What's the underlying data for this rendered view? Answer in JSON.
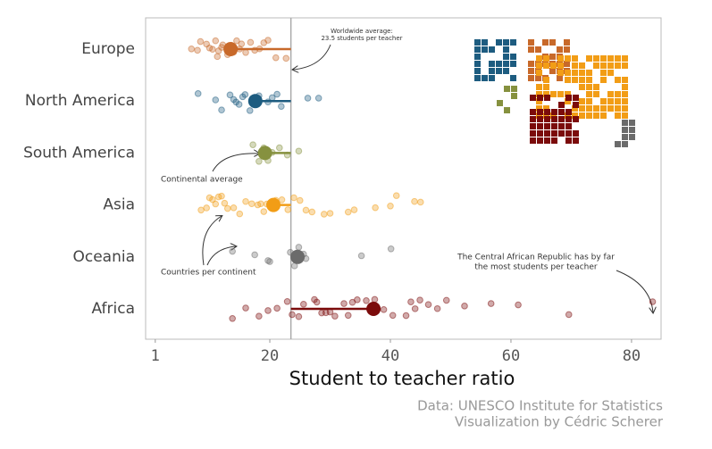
{
  "chart_data": {
    "type": "strip",
    "x_label": "Student to teacher ratio",
    "xlim": [
      -0.6,
      84.9
    ],
    "xticks": [
      1,
      20,
      40,
      60,
      80
    ],
    "average": 23.5,
    "annotations": {
      "worldwide": [
        "Worldwide average:",
        "23.5 students per teacher"
      ],
      "continental": "Continental average",
      "countries": "Countries per continent",
      "car": [
        "The Central African Republic has by far",
        "the most students per teacher"
      ]
    },
    "caption": [
      "Data: UNESCO Institute for Statistics",
      "Visualization by Cédric Scherer"
    ],
    "series": [
      {
        "name": "Europe",
        "color": "#c8692a",
        "mean": 13.5,
        "values": [
          7,
          8,
          8.5,
          9.5,
          10,
          10.5,
          11,
          11.3,
          11.5,
          12,
          12.2,
          13,
          14,
          14.5,
          15,
          15.3,
          16,
          16.8,
          17.5,
          18.3,
          19,
          19.7,
          21,
          22.7
        ]
      },
      {
        "name": "North America",
        "color": "#1d5c80",
        "mean": 17.6,
        "values": [
          8.1,
          11,
          12,
          13.4,
          14,
          14.4,
          14.9,
          15.5,
          15.9,
          16.7,
          17.2,
          18.2,
          19.7,
          20.4,
          21.2,
          21.9,
          26.3,
          28.1
        ]
      },
      {
        "name": "South America",
        "color": "#86913f",
        "mean": 19.2,
        "values": [
          17.2,
          18.2,
          19,
          19.7,
          20.4,
          21.6,
          22.9,
          24.8
        ]
      },
      {
        "name": "Asia",
        "color": "#f29d16",
        "mean": 20.6,
        "values": [
          8.6,
          9.5,
          10,
          10.5,
          11,
          11.5,
          12,
          12.5,
          13,
          14,
          15,
          16,
          17,
          18,
          18.5,
          19,
          19.5,
          20,
          21,
          22,
          23,
          24,
          25,
          26,
          27,
          29,
          30,
          33,
          34,
          37.5,
          40,
          41,
          44,
          45
        ]
      },
      {
        "name": "Oceania",
        "color": "#6b6b6b",
        "mean": 24.6,
        "values": [
          13.8,
          17.5,
          19.7,
          20,
          23.4,
          24.1,
          24.8,
          25.6,
          26,
          35.2,
          40.1
        ]
      },
      {
        "name": "Africa",
        "color": "#7b0b0b",
        "mean": 37.2,
        "values": [
          13.8,
          16,
          18.2,
          19.7,
          21.2,
          22.9,
          23.7,
          24.8,
          25.6,
          27.4,
          27.8,
          28.6,
          29.3,
          30,
          30.8,
          32.3,
          33,
          33.7,
          34.5,
          36,
          37.4,
          38.9,
          40.4,
          42.6,
          43.4,
          44.1,
          44.9,
          46.3,
          47.8,
          49.3,
          52.3,
          56.7,
          61.2,
          69.6,
          83.5
        ]
      }
    ]
  }
}
